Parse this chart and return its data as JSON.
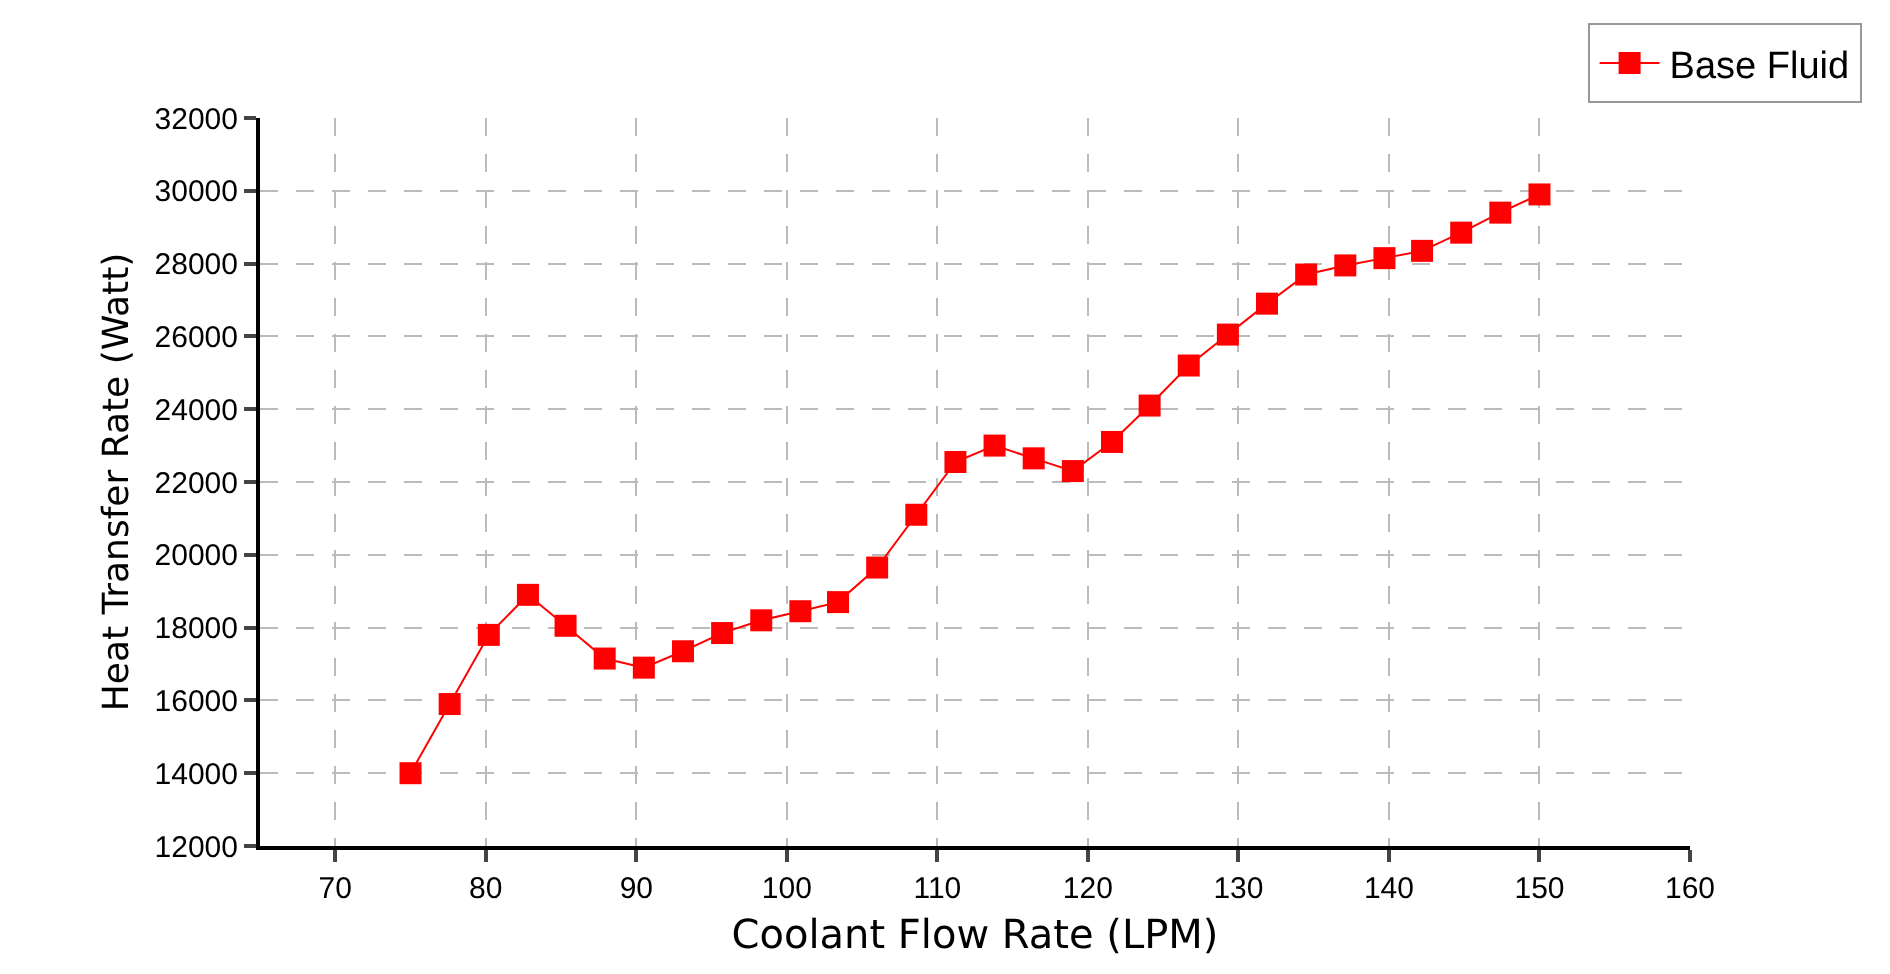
{
  "chart_data": {
    "type": "line",
    "xlabel": "Coolant Flow Rate (LPM)",
    "ylabel": "Heat Transfer Rate (Watt)",
    "x": [
      75,
      77.6,
      80.2,
      82.8,
      85.3,
      87.9,
      90.5,
      93.1,
      95.7,
      98.3,
      100.9,
      103.4,
      106.0,
      108.6,
      111.2,
      113.8,
      116.4,
      119.0,
      121.6,
      124.1,
      126.7,
      129.3,
      131.9,
      134.5,
      137.1,
      139.7,
      142.2,
      144.8,
      147.4,
      150
    ],
    "series": [
      {
        "name": "Base Fluid",
        "color": "#ff0000",
        "values": [
          14000,
          15900,
          17800,
          18900,
          18050,
          17150,
          16900,
          17350,
          17850,
          18200,
          18450,
          18700,
          19650,
          21100,
          22550,
          23000,
          22650,
          22300,
          23100,
          24100,
          25200,
          26050,
          26900,
          27700,
          27950,
          28150,
          28350,
          28850,
          29400,
          29900
        ]
      }
    ],
    "xlim": [
      65,
      160
    ],
    "xticks": [
      70,
      80,
      90,
      100,
      110,
      120,
      130,
      140,
      150,
      160
    ],
    "ylim": [
      12000,
      32000
    ],
    "yticks": [
      12000,
      14000,
      16000,
      18000,
      20000,
      22000,
      24000,
      26000,
      28000,
      30000,
      32000
    ],
    "grid": true,
    "legend": "top right",
    "marker": "square",
    "line_style": "solid"
  }
}
